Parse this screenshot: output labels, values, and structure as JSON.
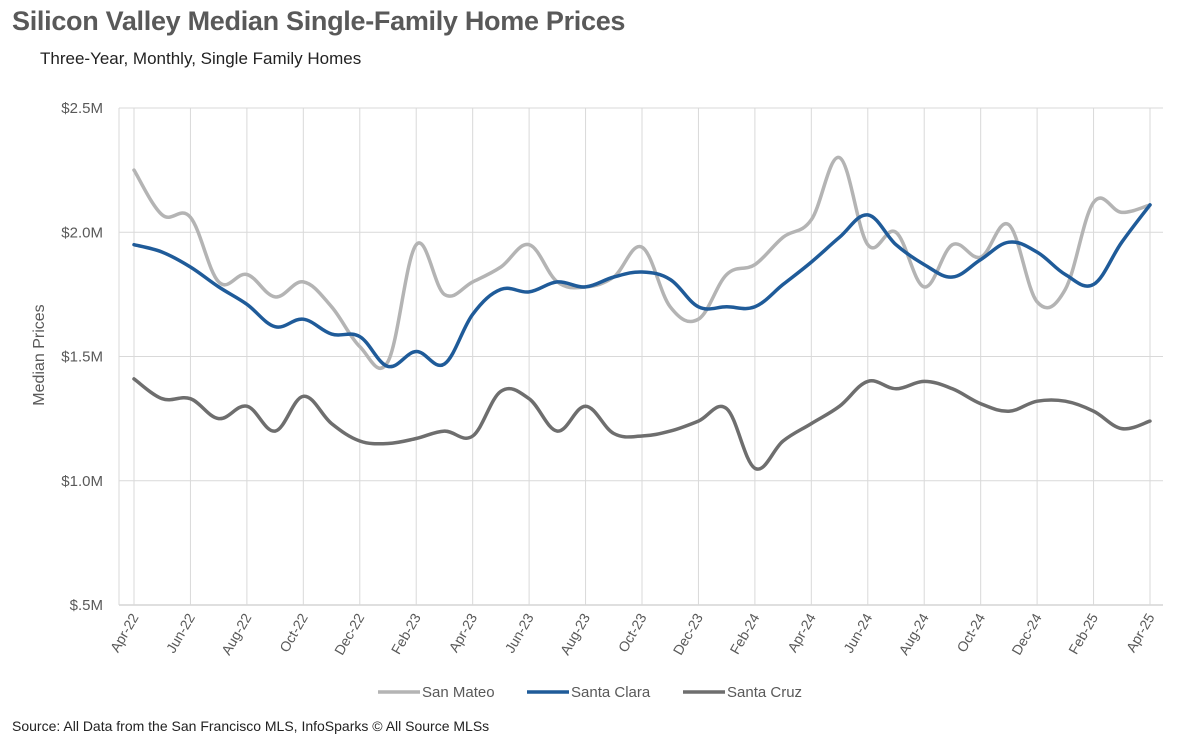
{
  "header": {
    "title": "Silicon Valley Median Single-Family Home Prices",
    "subtitle": "Three-Year, Monthly, Single Family Homes"
  },
  "footer": {
    "source": "Source: All Data from the San Francisco MLS, InfoSparks © All Source MLSs"
  },
  "chart_data": {
    "type": "line",
    "title": "Silicon Valley Median Single-Family Home Prices",
    "subtitle": "Three-Year, Monthly, Single Family Homes",
    "xlabel": "",
    "ylabel": "Median Prices",
    "ylim": [
      500000,
      2500000
    ],
    "yticks": [
      500000,
      1000000,
      1500000,
      2000000,
      2500000
    ],
    "ytick_labels": [
      "$.5M",
      "$1.0M",
      "$1.5M",
      "$2.0M",
      "$2.5M"
    ],
    "x": [
      "Apr-22",
      "May-22",
      "Jun-22",
      "Jul-22",
      "Aug-22",
      "Sep-22",
      "Oct-22",
      "Nov-22",
      "Dec-22",
      "Jan-23",
      "Feb-23",
      "Mar-23",
      "Apr-23",
      "May-23",
      "Jun-23",
      "Jul-23",
      "Aug-23",
      "Sep-23",
      "Oct-23",
      "Nov-23",
      "Dec-23",
      "Jan-24",
      "Feb-24",
      "Mar-24",
      "Apr-24",
      "May-24",
      "Jun-24",
      "Jul-24",
      "Aug-24",
      "Sep-24",
      "Oct-24",
      "Nov-24",
      "Dec-24",
      "Jan-25",
      "Feb-25",
      "Mar-25",
      "Apr-25"
    ],
    "xtick_labels": [
      "Apr-22",
      "Jun-22",
      "Aug-22",
      "Oct-22",
      "Dec-22",
      "Feb-23",
      "Apr-23",
      "Jun-23",
      "Aug-23",
      "Oct-23",
      "Dec-23",
      "Feb-24",
      "Apr-24",
      "Jun-24",
      "Aug-24",
      "Oct-24",
      "Dec-24",
      "Feb-25",
      "Apr-25"
    ],
    "grid": true,
    "legend_position": "bottom",
    "series": [
      {
        "name": "San Mateo",
        "color": "#b4b4b4",
        "values": [
          2250000,
          2070000,
          2060000,
          1800000,
          1830000,
          1740000,
          1800000,
          1700000,
          1540000,
          1480000,
          1950000,
          1750000,
          1800000,
          1860000,
          1950000,
          1800000,
          1780000,
          1820000,
          1940000,
          1700000,
          1650000,
          1830000,
          1870000,
          1980000,
          2050000,
          2300000,
          1950000,
          2000000,
          1780000,
          1950000,
          1900000,
          2030000,
          1720000,
          1770000,
          2120000,
          2080000,
          2110000
        ]
      },
      {
        "name": "Santa Clara",
        "color": "#1f5b99",
        "values": [
          1950000,
          1920000,
          1860000,
          1780000,
          1710000,
          1620000,
          1650000,
          1590000,
          1580000,
          1460000,
          1520000,
          1470000,
          1670000,
          1770000,
          1760000,
          1800000,
          1780000,
          1820000,
          1840000,
          1810000,
          1700000,
          1700000,
          1700000,
          1790000,
          1880000,
          1980000,
          2070000,
          1950000,
          1870000,
          1820000,
          1890000,
          1960000,
          1920000,
          1830000,
          1790000,
          1960000,
          2110000
        ]
      },
      {
        "name": "Santa Cruz",
        "color": "#6e6e6e",
        "values": [
          1410000,
          1330000,
          1330000,
          1250000,
          1300000,
          1200000,
          1340000,
          1230000,
          1160000,
          1150000,
          1170000,
          1200000,
          1180000,
          1360000,
          1330000,
          1200000,
          1300000,
          1190000,
          1180000,
          1200000,
          1240000,
          1290000,
          1050000,
          1160000,
          1230000,
          1300000,
          1400000,
          1370000,
          1400000,
          1370000,
          1310000,
          1280000,
          1320000,
          1320000,
          1280000,
          1210000,
          1240000
        ]
      }
    ]
  }
}
